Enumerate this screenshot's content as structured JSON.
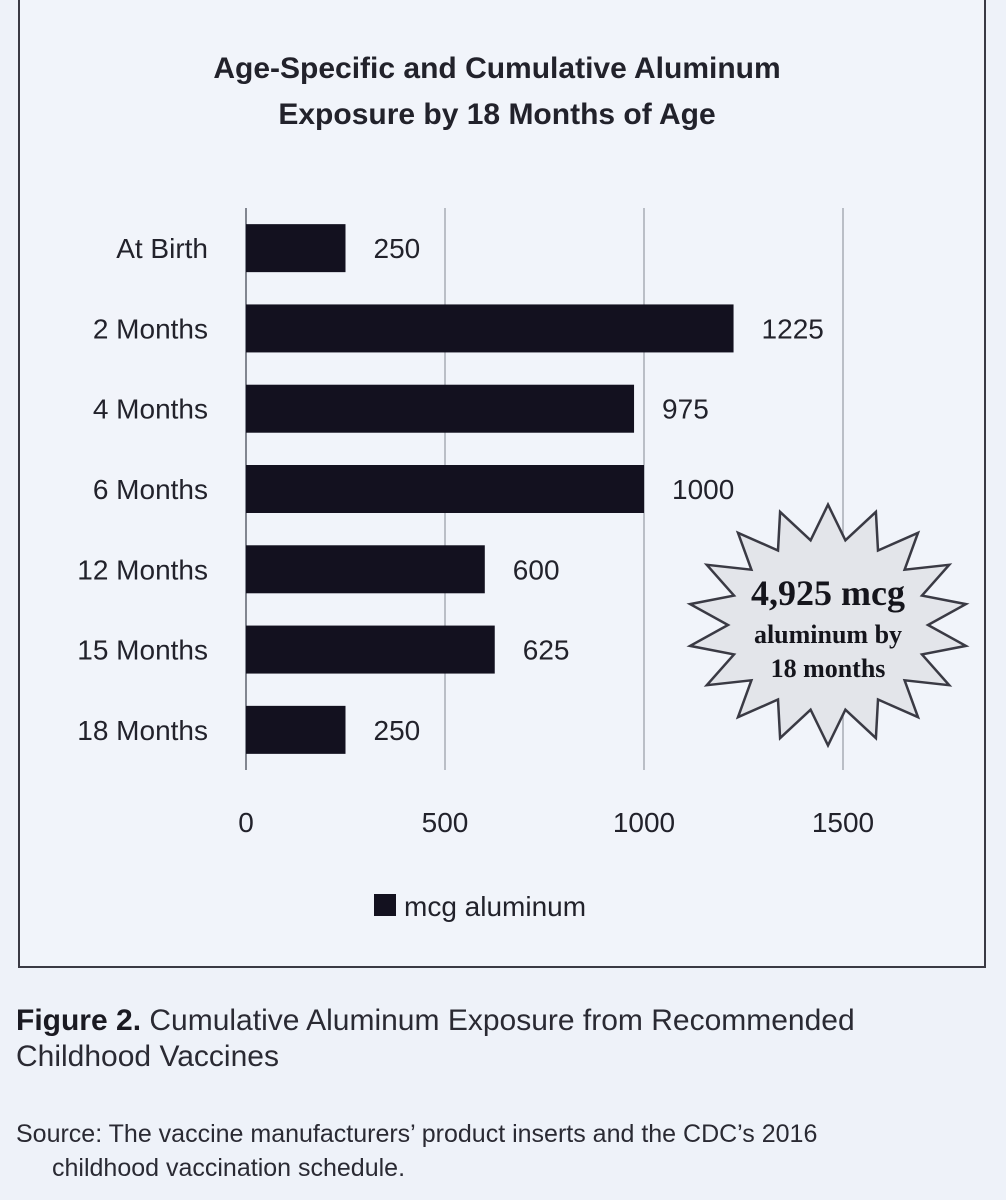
{
  "chart_data": {
    "type": "bar",
    "orientation": "horizontal",
    "title_line1": "Age-Specific and Cumulative Aluminum",
    "title_line2": "Exposure by 18 Months of Age",
    "categories": [
      "At Birth",
      "2 Months",
      "4 Months",
      "6 Months",
      "12 Months",
      "15 Months",
      "18 Months"
    ],
    "series": [
      {
        "name": "mcg aluminum",
        "values": [
          250,
          1225,
          975,
          1000,
          600,
          625,
          250
        ]
      }
    ],
    "data_labels": [
      "250",
      "1225",
      "975",
      "1000",
      "600",
      "625",
      "250"
    ],
    "x_ticks": [
      "0",
      "500",
      "1000",
      "1500"
    ],
    "x_tick_values": [
      0,
      500,
      1000,
      1500
    ],
    "xlim": [
      0,
      1500
    ],
    "xlabel": "",
    "ylabel": "",
    "grid": true,
    "legend_position": "bottom",
    "bar_color": "#13111f",
    "callout": {
      "line1": "4,925 mcg",
      "line2": "aluminum by",
      "line3": "18 months",
      "fill": "#e3e5ea"
    }
  },
  "caption": {
    "label": "Figure 2.",
    "text": " Cumulative Aluminum Exposure from Recommended Childhood Vaccines"
  },
  "source": {
    "line1": "Source: The vaccine manufacturers’ product inserts and the CDC’s 2016",
    "line2": "childhood vaccination schedule."
  }
}
